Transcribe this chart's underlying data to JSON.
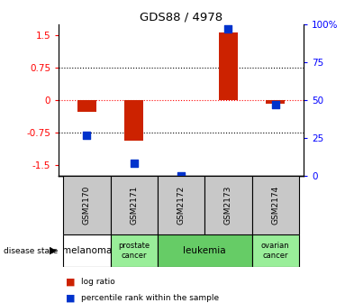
{
  "title": "GDS88 / 4978",
  "samples": [
    "GSM2170",
    "GSM2171",
    "GSM2172",
    "GSM2173",
    "GSM2174"
  ],
  "log_ratio": [
    -0.28,
    -0.95,
    0.0,
    1.55,
    -0.08
  ],
  "percentile_rank": [
    27,
    8,
    0,
    97,
    47
  ],
  "disease_state": [
    "melanoma",
    "prostate cancer",
    "leukemia",
    "leukemia",
    "ovarian cancer"
  ],
  "disease_colors": {
    "melanoma": "#ffffff",
    "prostate cancer": "#99ee99",
    "leukemia": "#66cc66",
    "ovarian cancer": "#99ee99"
  },
  "ylim_left": [
    -1.75,
    1.75
  ],
  "ylim_right": [
    0,
    100
  ],
  "yticks_left": [
    -1.5,
    -0.75,
    0,
    0.75,
    1.5
  ],
  "yticks_right": [
    0,
    25,
    50,
    75,
    100
  ],
  "bar_color": "#cc2200",
  "dot_color": "#0033cc",
  "sample_box_color": "#c8c8c8",
  "legend_label_red": "log ratio",
  "legend_label_blue": "percentile rank within the sample",
  "bar_width": 0.4,
  "dot_size": 30
}
